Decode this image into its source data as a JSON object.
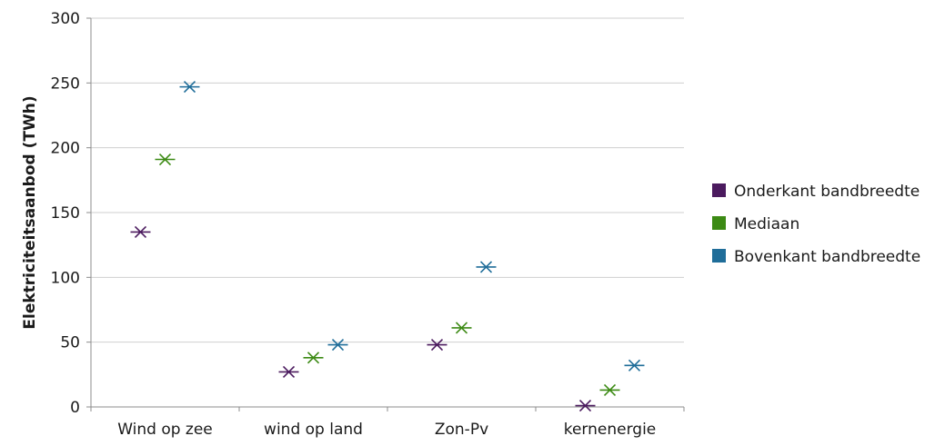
{
  "chart_data": {
    "type": "scatter",
    "marker": "x-with-bar",
    "categories": [
      "Wind op zee",
      "wind op land",
      "Zon-Pv",
      "kernenergie"
    ],
    "series": [
      {
        "name": "Onderkant bandbreedte",
        "color": "#4b1a5e",
        "values": [
          135,
          27,
          48,
          1
        ]
      },
      {
        "name": "Mediaan",
        "color": "#3c8a14",
        "values": [
          191,
          38,
          61,
          13
        ]
      },
      {
        "name": "Bovenkant bandbreedte",
        "color": "#1f6d99",
        "values": [
          247,
          48,
          108,
          32
        ]
      }
    ],
    "ylabel": "Elektriciteitsaanbod (TWh)",
    "xlabel": "",
    "ylim": [
      0,
      300
    ],
    "yticks": [
      0,
      50,
      100,
      150,
      200,
      250,
      300
    ],
    "grid": true,
    "legend_position": "right"
  }
}
